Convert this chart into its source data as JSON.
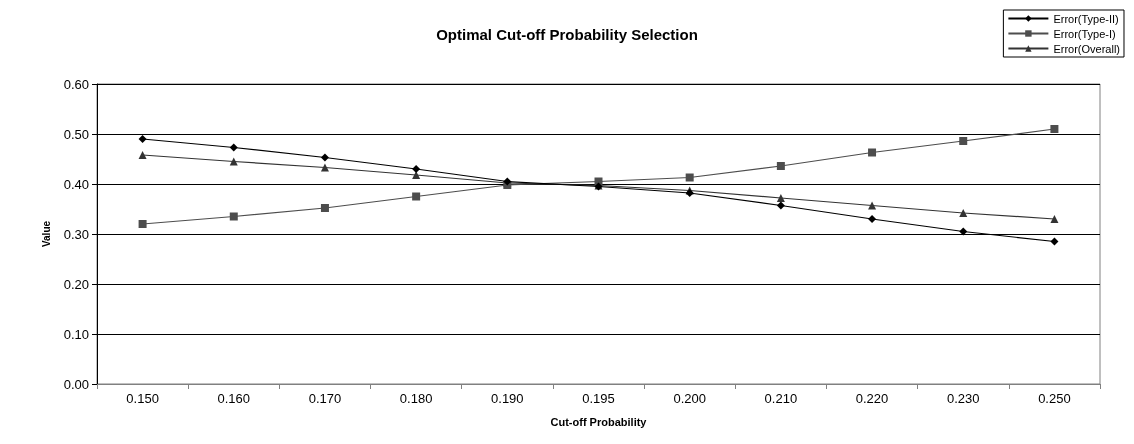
{
  "chart_data": {
    "type": "line",
    "title": "Optimal Cut-off Probability Selection",
    "xlabel": "Cut-off Probability",
    "ylabel": "Value",
    "categories": [
      "0.150",
      "0.160",
      "0.170",
      "0.180",
      "0.190",
      "0.195",
      "0.200",
      "0.210",
      "0.220",
      "0.230",
      "0.250"
    ],
    "series": [
      {
        "name": "Error(Type-II)",
        "color": "#000000",
        "marker": "diamond",
        "values": [
          0.49,
          0.473,
          0.453,
          0.43,
          0.405,
          0.395,
          0.382,
          0.357,
          0.33,
          0.305,
          0.285
        ]
      },
      {
        "name": "Error(Type-I)",
        "color": "#4d4d4d",
        "marker": "square",
        "values": [
          0.32,
          0.335,
          0.352,
          0.375,
          0.398,
          0.405,
          0.413,
          0.436,
          0.463,
          0.486,
          0.51
        ]
      },
      {
        "name": "Error(Overall)",
        "color": "#333333",
        "marker": "triangle",
        "values": [
          0.458,
          0.445,
          0.433,
          0.418,
          0.402,
          0.397,
          0.387,
          0.372,
          0.357,
          0.342,
          0.33
        ]
      }
    ],
    "ylim": [
      0,
      0.6
    ],
    "yticks": [
      {
        "value": 0,
        "label": "0.00"
      },
      {
        "value": 0.1,
        "label": "0.10"
      },
      {
        "value": 0.2,
        "label": "0.20"
      },
      {
        "value": 0.3,
        "label": "0.30"
      },
      {
        "value": 0.4,
        "label": "0.40"
      },
      {
        "value": 0.5,
        "label": "0.50"
      },
      {
        "value": 0.6,
        "label": "0.60"
      }
    ],
    "grid": "y",
    "legend": "top right"
  }
}
